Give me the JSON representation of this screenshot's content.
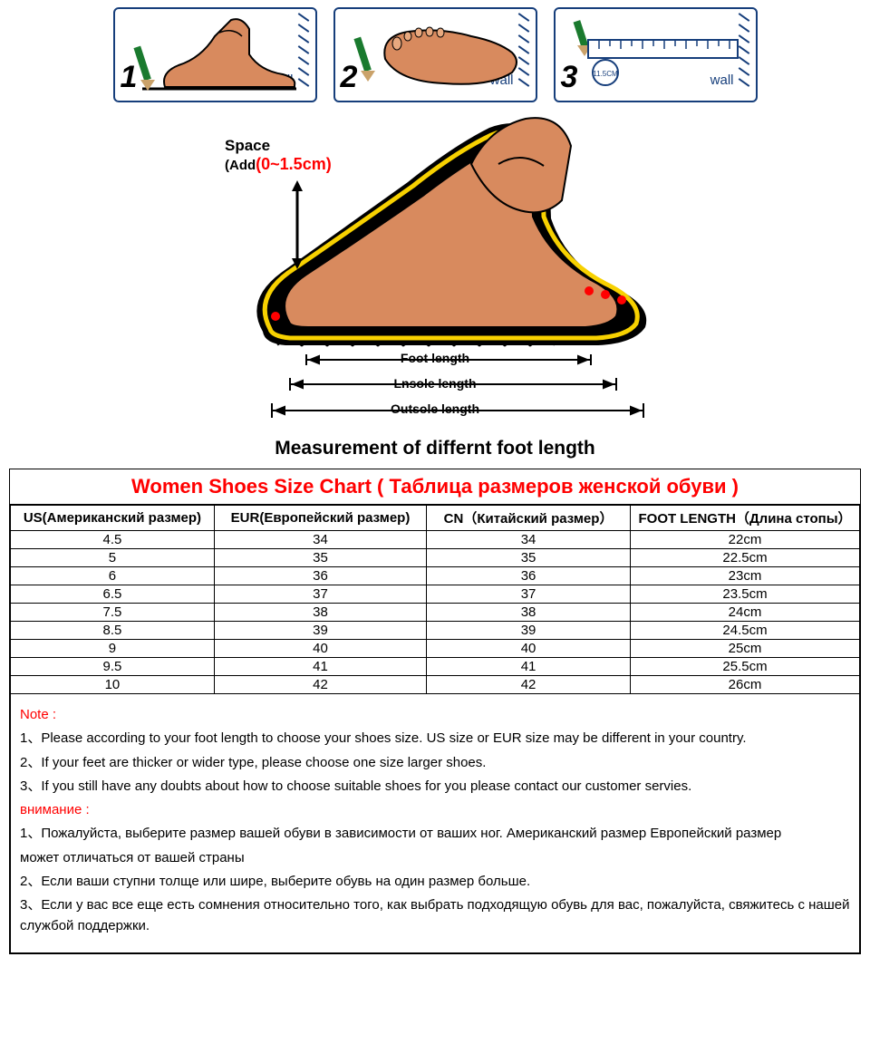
{
  "panels": [
    {
      "num": "1",
      "wall": "wall"
    },
    {
      "num": "2",
      "wall": "wall"
    },
    {
      "num": "3",
      "wall": "wall",
      "ruler_mark": "11.5CM"
    }
  ],
  "diagram": {
    "space_label": "Space",
    "space_add_prefix": "(Add",
    "space_add_red": "(0~1.5cm)",
    "meas_foot": "Foot length",
    "meas_insole": "Lnsole length",
    "meas_outsole": "Outsole length",
    "caption": "Measurement of differnt foot length",
    "colors": {
      "skin": "#d88a5e",
      "skin_light": "#e8a97f",
      "outline": "#000000",
      "sole_edge": "#f7d100",
      "dot": "#ff0000",
      "ruler": "#163e7b"
    }
  },
  "chart": {
    "title": "Women Shoes Size Chart ( Таблица размеров женской обуви )",
    "columns": [
      "US(Американский размер)",
      "EUR(Европейский размер)",
      "CN（Китайский размер）",
      "FOOT LENGTH（Длина стопы）"
    ],
    "rows": [
      [
        "4.5",
        "34",
        "34",
        "22cm"
      ],
      [
        "5",
        "35",
        "35",
        "22.5cm"
      ],
      [
        "6",
        "36",
        "36",
        "23cm"
      ],
      [
        "6.5",
        "37",
        "37",
        "23.5cm"
      ],
      [
        "7.5",
        "38",
        "38",
        "24cm"
      ],
      [
        "8.5",
        "39",
        "39",
        "24.5cm"
      ],
      [
        "9",
        "40",
        "40",
        "25cm"
      ],
      [
        "9.5",
        "41",
        "41",
        "25.5cm"
      ],
      [
        "10",
        "42",
        "42",
        "26cm"
      ]
    ]
  },
  "notes": {
    "hdr_en": "Note :",
    "en": [
      "1、Please according to your foot length to choose your shoes size. US size or EUR size may be different in your country.",
      "2、If your feet are thicker or wider type, please choose one size larger shoes.",
      "3、If you still have any doubts about how to choose suitable shoes for you please contact our customer servies."
    ],
    "hdr_ru": "внимание :",
    "ru": [
      "1、Пожалуйста, выберите размер вашей обуви в зависимости от ваших ног.  Американский размер Европейский размер",
      "может отличаться от вашей страны",
      "2、Если ваши ступни толще или шире, выберите обувь на один размер больше.",
      "3、Если у вас все еще есть сомнения относительно того, как выбрать подходящую обувь для вас, пожалуйста, свяжитесь с нашей службой поддержки."
    ]
  }
}
